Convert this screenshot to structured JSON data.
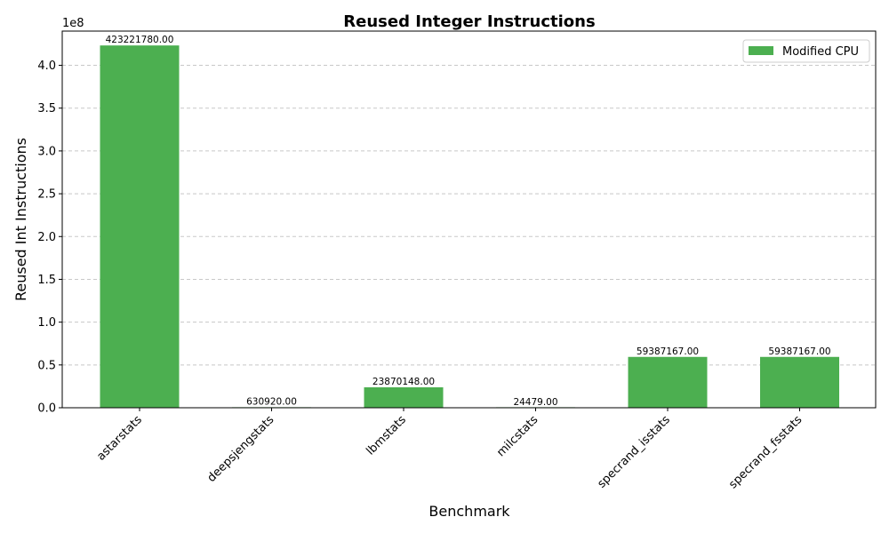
{
  "chart_data": {
    "type": "bar",
    "title": "Reused Integer Instructions",
    "xlabel": "Benchmark",
    "ylabel": "Reused Int Instructions",
    "y_offset_label": "1e8",
    "y_scale": 100000000,
    "ylim": [
      0,
      440000000
    ],
    "yticks": [
      "0.0",
      "0.5",
      "1.0",
      "1.5",
      "2.0",
      "2.5",
      "3.0",
      "3.5",
      "4.0"
    ],
    "grid": "y-dashed",
    "legend_position": "top-right",
    "categories": [
      "astarstats",
      "deepsjengstats",
      "lbmstats",
      "milcstats",
      "specrand_isstats",
      "specrand_fsstats"
    ],
    "series": [
      {
        "name": "Modified CPU",
        "color": "#4caf50",
        "values": [
          423221780,
          630920,
          23870148,
          24479,
          59387167,
          59387167
        ],
        "value_labels": [
          "423221780.00",
          "630920.00",
          "23870148.00",
          "24479.00",
          "59387167.00",
          "59387167.00"
        ]
      }
    ]
  }
}
